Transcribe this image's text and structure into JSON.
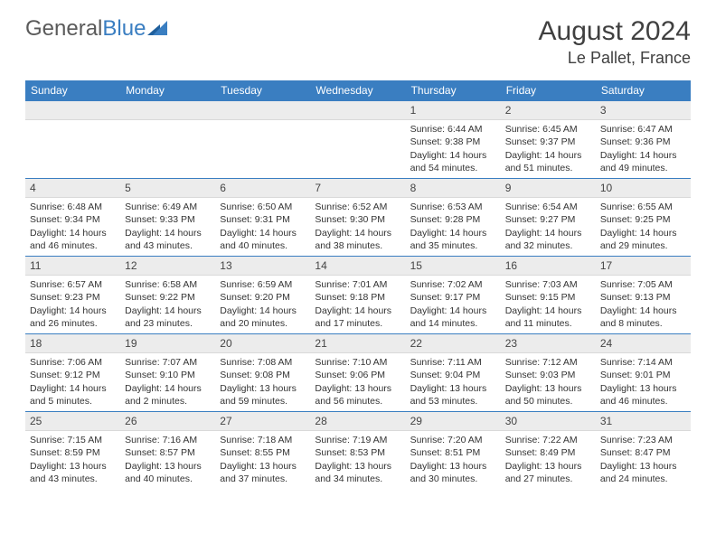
{
  "logo": {
    "text1": "General",
    "text2": "Blue"
  },
  "title": {
    "month": "August 2024",
    "location": "Le Pallet, France"
  },
  "colors": {
    "header_bg": "#3a7ec1",
    "header_text": "#ffffff",
    "daynum_bg": "#ececec",
    "border": "#3a7ec1",
    "text": "#333333",
    "logo_gray": "#5a5a5a",
    "logo_blue": "#3a7ec1"
  },
  "dayHeaders": [
    "Sunday",
    "Monday",
    "Tuesday",
    "Wednesday",
    "Thursday",
    "Friday",
    "Saturday"
  ],
  "weeks": [
    [
      {
        "n": "",
        "sr": "",
        "ss": "",
        "dl": ""
      },
      {
        "n": "",
        "sr": "",
        "ss": "",
        "dl": ""
      },
      {
        "n": "",
        "sr": "",
        "ss": "",
        "dl": ""
      },
      {
        "n": "",
        "sr": "",
        "ss": "",
        "dl": ""
      },
      {
        "n": "1",
        "sr": "Sunrise: 6:44 AM",
        "ss": "Sunset: 9:38 PM",
        "dl": "Daylight: 14 hours and 54 minutes."
      },
      {
        "n": "2",
        "sr": "Sunrise: 6:45 AM",
        "ss": "Sunset: 9:37 PM",
        "dl": "Daylight: 14 hours and 51 minutes."
      },
      {
        "n": "3",
        "sr": "Sunrise: 6:47 AM",
        "ss": "Sunset: 9:36 PM",
        "dl": "Daylight: 14 hours and 49 minutes."
      }
    ],
    [
      {
        "n": "4",
        "sr": "Sunrise: 6:48 AM",
        "ss": "Sunset: 9:34 PM",
        "dl": "Daylight: 14 hours and 46 minutes."
      },
      {
        "n": "5",
        "sr": "Sunrise: 6:49 AM",
        "ss": "Sunset: 9:33 PM",
        "dl": "Daylight: 14 hours and 43 minutes."
      },
      {
        "n": "6",
        "sr": "Sunrise: 6:50 AM",
        "ss": "Sunset: 9:31 PM",
        "dl": "Daylight: 14 hours and 40 minutes."
      },
      {
        "n": "7",
        "sr": "Sunrise: 6:52 AM",
        "ss": "Sunset: 9:30 PM",
        "dl": "Daylight: 14 hours and 38 minutes."
      },
      {
        "n": "8",
        "sr": "Sunrise: 6:53 AM",
        "ss": "Sunset: 9:28 PM",
        "dl": "Daylight: 14 hours and 35 minutes."
      },
      {
        "n": "9",
        "sr": "Sunrise: 6:54 AM",
        "ss": "Sunset: 9:27 PM",
        "dl": "Daylight: 14 hours and 32 minutes."
      },
      {
        "n": "10",
        "sr": "Sunrise: 6:55 AM",
        "ss": "Sunset: 9:25 PM",
        "dl": "Daylight: 14 hours and 29 minutes."
      }
    ],
    [
      {
        "n": "11",
        "sr": "Sunrise: 6:57 AM",
        "ss": "Sunset: 9:23 PM",
        "dl": "Daylight: 14 hours and 26 minutes."
      },
      {
        "n": "12",
        "sr": "Sunrise: 6:58 AM",
        "ss": "Sunset: 9:22 PM",
        "dl": "Daylight: 14 hours and 23 minutes."
      },
      {
        "n": "13",
        "sr": "Sunrise: 6:59 AM",
        "ss": "Sunset: 9:20 PM",
        "dl": "Daylight: 14 hours and 20 minutes."
      },
      {
        "n": "14",
        "sr": "Sunrise: 7:01 AM",
        "ss": "Sunset: 9:18 PM",
        "dl": "Daylight: 14 hours and 17 minutes."
      },
      {
        "n": "15",
        "sr": "Sunrise: 7:02 AM",
        "ss": "Sunset: 9:17 PM",
        "dl": "Daylight: 14 hours and 14 minutes."
      },
      {
        "n": "16",
        "sr": "Sunrise: 7:03 AM",
        "ss": "Sunset: 9:15 PM",
        "dl": "Daylight: 14 hours and 11 minutes."
      },
      {
        "n": "17",
        "sr": "Sunrise: 7:05 AM",
        "ss": "Sunset: 9:13 PM",
        "dl": "Daylight: 14 hours and 8 minutes."
      }
    ],
    [
      {
        "n": "18",
        "sr": "Sunrise: 7:06 AM",
        "ss": "Sunset: 9:12 PM",
        "dl": "Daylight: 14 hours and 5 minutes."
      },
      {
        "n": "19",
        "sr": "Sunrise: 7:07 AM",
        "ss": "Sunset: 9:10 PM",
        "dl": "Daylight: 14 hours and 2 minutes."
      },
      {
        "n": "20",
        "sr": "Sunrise: 7:08 AM",
        "ss": "Sunset: 9:08 PM",
        "dl": "Daylight: 13 hours and 59 minutes."
      },
      {
        "n": "21",
        "sr": "Sunrise: 7:10 AM",
        "ss": "Sunset: 9:06 PM",
        "dl": "Daylight: 13 hours and 56 minutes."
      },
      {
        "n": "22",
        "sr": "Sunrise: 7:11 AM",
        "ss": "Sunset: 9:04 PM",
        "dl": "Daylight: 13 hours and 53 minutes."
      },
      {
        "n": "23",
        "sr": "Sunrise: 7:12 AM",
        "ss": "Sunset: 9:03 PM",
        "dl": "Daylight: 13 hours and 50 minutes."
      },
      {
        "n": "24",
        "sr": "Sunrise: 7:14 AM",
        "ss": "Sunset: 9:01 PM",
        "dl": "Daylight: 13 hours and 46 minutes."
      }
    ],
    [
      {
        "n": "25",
        "sr": "Sunrise: 7:15 AM",
        "ss": "Sunset: 8:59 PM",
        "dl": "Daylight: 13 hours and 43 minutes."
      },
      {
        "n": "26",
        "sr": "Sunrise: 7:16 AM",
        "ss": "Sunset: 8:57 PM",
        "dl": "Daylight: 13 hours and 40 minutes."
      },
      {
        "n": "27",
        "sr": "Sunrise: 7:18 AM",
        "ss": "Sunset: 8:55 PM",
        "dl": "Daylight: 13 hours and 37 minutes."
      },
      {
        "n": "28",
        "sr": "Sunrise: 7:19 AM",
        "ss": "Sunset: 8:53 PM",
        "dl": "Daylight: 13 hours and 34 minutes."
      },
      {
        "n": "29",
        "sr": "Sunrise: 7:20 AM",
        "ss": "Sunset: 8:51 PM",
        "dl": "Daylight: 13 hours and 30 minutes."
      },
      {
        "n": "30",
        "sr": "Sunrise: 7:22 AM",
        "ss": "Sunset: 8:49 PM",
        "dl": "Daylight: 13 hours and 27 minutes."
      },
      {
        "n": "31",
        "sr": "Sunrise: 7:23 AM",
        "ss": "Sunset: 8:47 PM",
        "dl": "Daylight: 13 hours and 24 minutes."
      }
    ]
  ]
}
